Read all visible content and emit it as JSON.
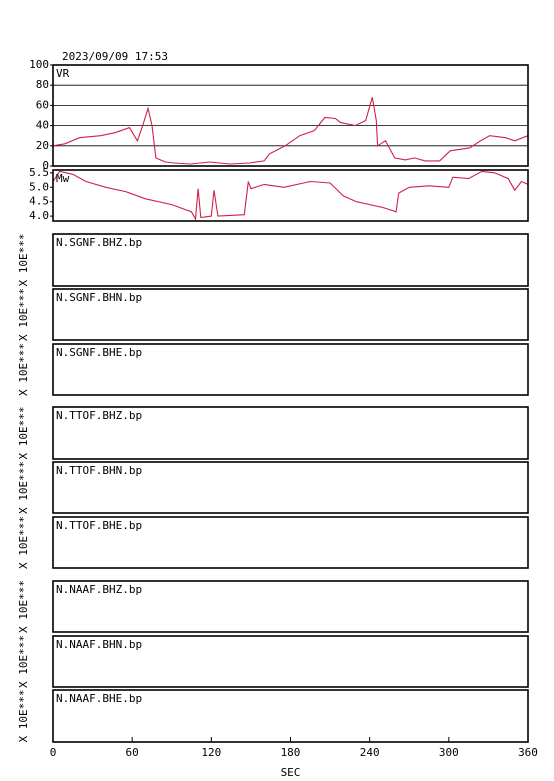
{
  "chart_data": [
    {
      "type": "line",
      "title": "2023/09/09 17:53",
      "label": "VR",
      "color": "#d0204a",
      "grid": true,
      "xlim": [
        0,
        360
      ],
      "ylim": [
        0,
        100
      ],
      "yticks": [
        0,
        20,
        40,
        60,
        80,
        100
      ],
      "x": [
        0,
        9,
        20,
        36,
        47,
        58,
        64,
        68,
        72,
        75,
        78,
        85,
        92,
        104,
        119,
        134,
        149,
        160,
        164,
        176,
        187,
        198,
        206,
        214,
        218,
        229,
        237,
        242,
        245,
        246,
        252,
        259,
        267,
        274,
        282,
        293,
        301,
        316,
        324,
        331,
        343,
        350,
        360
      ],
      "values": [
        20,
        22,
        28,
        30,
        33,
        38,
        25,
        40,
        57,
        40,
        8,
        4,
        3,
        2,
        4,
        2,
        3,
        5,
        12,
        20,
        30,
        35,
        48,
        47,
        43,
        40,
        45,
        68,
        45,
        20,
        25,
        8,
        6,
        8,
        5,
        5,
        15,
        18,
        25,
        30,
        28,
        25,
        30
      ]
    },
    {
      "type": "line",
      "label": "Mw",
      "color": "#d0204a",
      "xlim": [
        0,
        360
      ],
      "ylim": [
        3.83,
        5.6
      ],
      "yticks": [
        {
          "value": 4,
          "label": "4.0"
        },
        4.5,
        {
          "value": 5,
          "label": "5.0"
        },
        5.5
      ],
      "x": [
        0,
        5,
        15,
        25,
        40,
        55,
        70,
        90,
        105,
        108,
        110,
        112,
        120,
        122,
        125,
        145,
        148,
        150,
        160,
        175,
        195,
        210,
        220,
        230,
        240,
        250,
        260,
        262,
        270,
        285,
        300,
        303,
        315,
        325,
        335,
        345,
        350,
        355,
        360
      ],
      "values": [
        5.2,
        5.55,
        5.45,
        5.2,
        5.0,
        4.85,
        4.6,
        4.4,
        4.15,
        3.9,
        4.95,
        3.95,
        4.0,
        4.9,
        4.0,
        4.05,
        5.2,
        4.95,
        5.1,
        5.0,
        5.2,
        5.15,
        4.7,
        4.5,
        4.4,
        4.3,
        4.15,
        4.8,
        5.0,
        5.05,
        5.0,
        5.35,
        5.3,
        5.55,
        5.5,
        5.3,
        4.9,
        5.2,
        5.1
      ]
    },
    {
      "type": "trace",
      "label": "N.SGNF.BHZ.bp",
      "ylabel": "X 10E***"
    },
    {
      "type": "trace",
      "label": "N.SGNF.BHN.bp",
      "ylabel": "X 10E***"
    },
    {
      "type": "trace",
      "label": "N.SGNF.BHE.bp",
      "ylabel": "X 10E***"
    },
    {
      "type": "trace",
      "label": "N.TTOF.BHZ.bp",
      "ylabel": "X 10E***"
    },
    {
      "type": "trace",
      "label": "N.TTOF.BHN.bp",
      "ylabel": "X 10E***"
    },
    {
      "type": "trace",
      "label": "N.TTOF.BHE.bp",
      "ylabel": "X 10E***"
    },
    {
      "type": "trace",
      "label": "N.NAAF.BHZ.bp",
      "ylabel": "X 10E***"
    },
    {
      "type": "trace",
      "label": "N.NAAF.BHN.bp",
      "ylabel": "X 10E***"
    },
    {
      "type": "trace",
      "label": "N.NAAF.BHE.bp",
      "ylabel": "X 10E***",
      "xlim": [
        0,
        360
      ],
      "xticks": [
        0,
        60,
        120,
        180,
        240,
        300,
        360
      ],
      "xlabel": "SEC"
    }
  ]
}
